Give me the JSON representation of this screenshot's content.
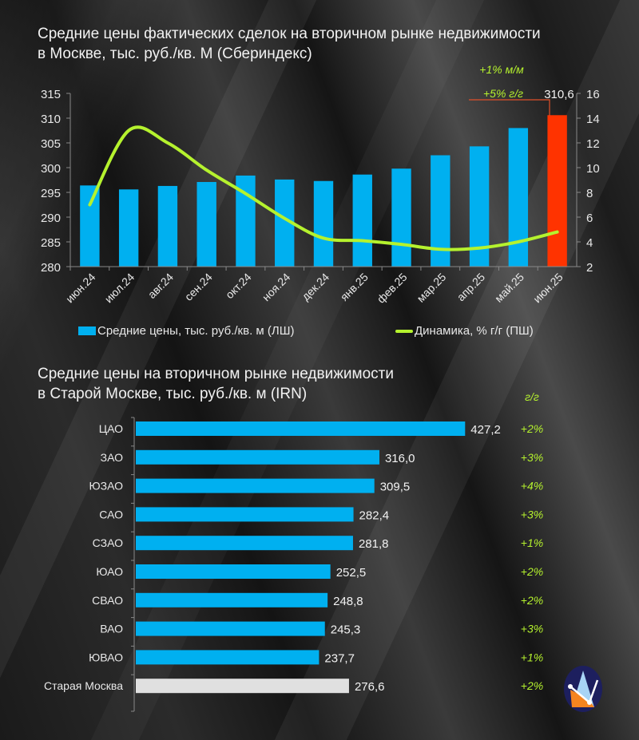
{
  "chart_data": [
    {
      "type": "bar+line",
      "title": "Средние цены фактических сделок на вторичном рынке недвижимости в Москве, тыс. руб./кв. М (Сбериндекс)",
      "title_lines": [
        "Средние цены фактических сделок на вторичном рынке недвижимости",
        "в Москве, тыс. руб./кв. М (Сбериндекс)"
      ],
      "categories": [
        "июн.24",
        "июл.24",
        "авг.24",
        "сен.24",
        "окт.24",
        "ноя.24",
        "дек.24",
        "янв.25",
        "фев.25",
        "мар.25",
        "апр.25",
        "май.25",
        "июн.25"
      ],
      "series": [
        {
          "name": "Средние цены, тыс. руб./кв. м (ЛШ)",
          "axis": "left",
          "type": "bar",
          "values": [
            296.4,
            295.6,
            296.3,
            297.1,
            298.4,
            297.6,
            297.3,
            298.6,
            299.8,
            302.5,
            304.3,
            308.0,
            310.6
          ],
          "color": "#00b0f0",
          "highlight_color": "#ff3300",
          "highlight_index": 12
        },
        {
          "name": "Динамика, % г/г (ПШ)",
          "axis": "right",
          "type": "line",
          "values": [
            7.0,
            13.0,
            12.0,
            9.8,
            7.9,
            5.9,
            4.3,
            4.1,
            3.8,
            3.4,
            3.5,
            4.0,
            4.8
          ],
          "color": "#b5f22e"
        }
      ],
      "y_left": {
        "min": 280,
        "max": 315,
        "ticks": [
          280,
          285,
          290,
          295,
          300,
          305,
          310,
          315
        ]
      },
      "y_right": {
        "min": 2,
        "max": 16,
        "ticks": [
          2,
          4,
          6,
          8,
          10,
          12,
          14,
          16
        ]
      },
      "annotations": {
        "last_value": "310,6",
        "mom": "+1% м/м",
        "yoy": "+5% г/г"
      },
      "legend_placement": "bottom"
    },
    {
      "type": "bar",
      "orientation": "horizontal",
      "title": "Средние цены на вторичном рынке недвижимости в Старой Москве, тыс. руб./кв. м (IRN)",
      "title_lines": [
        "Средние цены на вторичном рынке недвижимости",
        "в Старой Москве, тыс. руб./кв. м (IRN)"
      ],
      "change_header": "г/г",
      "categories": [
        "ЦАО",
        "ЗАО",
        "ЮЗАО",
        "САО",
        "СЗАО",
        "ЮАО",
        "СВАО",
        "ВАО",
        "ЮВАО",
        "Старая Москва"
      ],
      "values": [
        427.2,
        316.0,
        309.5,
        282.4,
        281.8,
        252.5,
        248.8,
        245.3,
        237.7,
        276.6
      ],
      "value_labels": [
        "427,2",
        "316,0",
        "309,5",
        "282,4",
        "281,8",
        "252,5",
        "248,8",
        "245,3",
        "237,7",
        "276,6"
      ],
      "changes": [
        "+2%",
        "+3%",
        "+4%",
        "+3%",
        "+1%",
        "+2%",
        "+2%",
        "+3%",
        "+1%",
        "+2%"
      ],
      "colors": {
        "bar": "#00b0f0",
        "total": "#e0e0e0",
        "change": "#b5f22e"
      }
    }
  ],
  "logo": {
    "icon": "analytics-logo-icon"
  }
}
